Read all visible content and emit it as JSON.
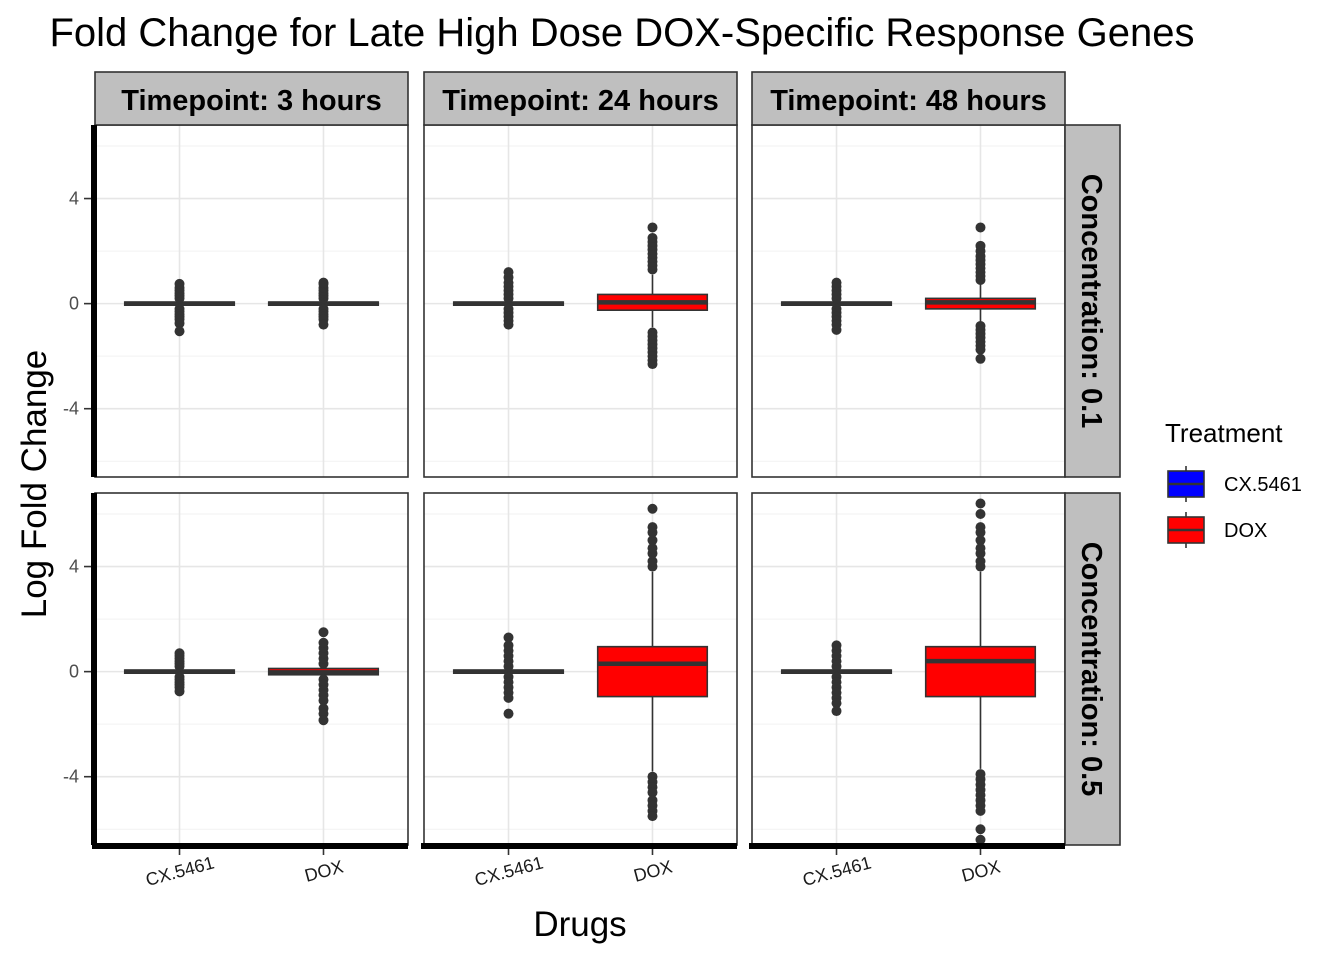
{
  "chart_data": {
    "type": "boxplot",
    "title": "Fold Change for Late High Dose DOX-Specific Response Genes",
    "xlabel": "Drugs",
    "ylabel": "Log Fold Change",
    "ylim": [
      -6.6,
      6.8
    ],
    "yticks": [
      4,
      0,
      -4
    ],
    "categories": [
      "CX.5461",
      "DOX"
    ],
    "facet_columns": [
      "Timepoint: 3 hours",
      "Timepoint: 24 hours",
      "Timepoint: 48 hours"
    ],
    "facet_rows": [
      "Concentration: 0.1",
      "Concentration: 0.5"
    ],
    "legend": {
      "title": "Treatment",
      "position": "right",
      "items": [
        {
          "label": "CX.5461",
          "color": "#0000ff"
        },
        {
          "label": "DOX",
          "color": "#ff0000"
        }
      ]
    },
    "grid": true,
    "panels": [
      {
        "row": 0,
        "col": 0,
        "boxes": [
          {
            "category": "CX.5461",
            "q1": -0.06,
            "median": 0.0,
            "q3": 0.06,
            "whisker_low": -0.1,
            "whisker_high": 0.1,
            "outliers": [
              0.2,
              0.3,
              0.4,
              0.5,
              0.6,
              0.75,
              -0.2,
              -0.3,
              -0.4,
              -0.5,
              -0.6,
              -0.75,
              -1.05
            ]
          },
          {
            "category": "DOX",
            "q1": -0.06,
            "median": 0.0,
            "q3": 0.06,
            "whisker_low": -0.1,
            "whisker_high": 0.1,
            "outliers": [
              0.2,
              0.3,
              0.4,
              0.5,
              0.6,
              0.75,
              0.8,
              -0.2,
              -0.3,
              -0.4,
              -0.5,
              -0.6,
              -0.8
            ]
          }
        ]
      },
      {
        "row": 0,
        "col": 1,
        "boxes": [
          {
            "category": "CX.5461",
            "q1": -0.06,
            "median": 0.0,
            "q3": 0.06,
            "whisker_low": -0.1,
            "whisker_high": 0.1,
            "outliers": [
              0.2,
              0.35,
              0.5,
              0.65,
              0.8,
              1.0,
              1.2,
              -0.2,
              -0.35,
              -0.5,
              -0.65,
              -0.8
            ]
          },
          {
            "category": "DOX",
            "q1": -0.25,
            "median": 0.05,
            "q3": 0.35,
            "whisker_low": -0.9,
            "whisker_high": 1.1,
            "outliers": [
              1.3,
              1.45,
              1.6,
              1.75,
              1.9,
              2.05,
              2.2,
              2.35,
              2.5,
              2.9,
              -1.1,
              -1.25,
              -1.4,
              -1.55,
              -1.7,
              -1.85,
              -2.0,
              -2.15,
              -2.3
            ]
          }
        ]
      },
      {
        "row": 0,
        "col": 2,
        "boxes": [
          {
            "category": "CX.5461",
            "q1": -0.06,
            "median": 0.0,
            "q3": 0.06,
            "whisker_low": -0.1,
            "whisker_high": 0.1,
            "outliers": [
              0.2,
              0.35,
              0.5,
              0.65,
              0.8,
              -0.2,
              -0.35,
              -0.5,
              -0.65,
              -0.8,
              -1.0
            ]
          },
          {
            "category": "DOX",
            "q1": -0.2,
            "median": 0.05,
            "q3": 0.2,
            "whisker_low": -0.75,
            "whisker_high": 0.8,
            "outliers": [
              0.9,
              1.05,
              1.2,
              1.35,
              1.5,
              1.65,
              1.8,
              2.0,
              2.2,
              2.9,
              -0.85,
              -1.0,
              -1.15,
              -1.3,
              -1.45,
              -1.6,
              -1.75,
              -2.1
            ]
          }
        ]
      },
      {
        "row": 1,
        "col": 0,
        "boxes": [
          {
            "category": "CX.5461",
            "q1": -0.06,
            "median": 0.0,
            "q3": 0.06,
            "whisker_low": -0.1,
            "whisker_high": 0.1,
            "outliers": [
              0.2,
              0.3,
              0.4,
              0.5,
              0.6,
              0.7,
              -0.2,
              -0.3,
              -0.4,
              -0.5,
              -0.6,
              -0.75
            ]
          },
          {
            "category": "DOX",
            "q1": -0.12,
            "median": -0.03,
            "q3": 0.12,
            "whisker_low": -0.2,
            "whisker_high": 0.2,
            "outliers": [
              0.3,
              0.5,
              0.7,
              0.9,
              1.1,
              1.5,
              -0.3,
              -0.5,
              -0.7,
              -0.9,
              -1.1,
              -1.4,
              -1.6,
              -1.85
            ]
          }
        ]
      },
      {
        "row": 1,
        "col": 1,
        "boxes": [
          {
            "category": "CX.5461",
            "q1": -0.06,
            "median": 0.0,
            "q3": 0.06,
            "whisker_low": -0.1,
            "whisker_high": 0.1,
            "outliers": [
              0.2,
              0.4,
              0.6,
              0.8,
              1.0,
              1.3,
              -0.2,
              -0.4,
              -0.6,
              -0.8,
              -1.0,
              -1.6
            ]
          },
          {
            "category": "DOX",
            "q1": -0.95,
            "median": 0.3,
            "q3": 0.95,
            "whisker_low": -3.8,
            "whisker_high": 3.8,
            "outliers": [
              4.0,
              4.2,
              4.5,
              4.7,
              5.0,
              5.3,
              5.5,
              6.2,
              -4.0,
              -4.2,
              -4.4,
              -4.6,
              -4.9,
              -5.1,
              -5.3,
              -5.5
            ]
          }
        ]
      },
      {
        "row": 1,
        "col": 2,
        "boxes": [
          {
            "category": "CX.5461",
            "q1": -0.06,
            "median": 0.0,
            "q3": 0.06,
            "whisker_low": -0.1,
            "whisker_high": 0.1,
            "outliers": [
              0.2,
              0.4,
              0.6,
              0.8,
              1.0,
              -0.2,
              -0.4,
              -0.6,
              -0.8,
              -1.0,
              -1.2,
              -1.5
            ]
          },
          {
            "category": "DOX",
            "q1": -0.95,
            "median": 0.4,
            "q3": 0.95,
            "whisker_low": -3.7,
            "whisker_high": 3.8,
            "outliers": [
              4.0,
              4.2,
              4.5,
              4.7,
              5.0,
              5.3,
              5.5,
              6.0,
              6.4,
              -3.9,
              -4.1,
              -4.3,
              -4.5,
              -4.7,
              -4.9,
              -5.1,
              -5.3,
              -6.0,
              -6.4
            ]
          }
        ]
      }
    ]
  }
}
